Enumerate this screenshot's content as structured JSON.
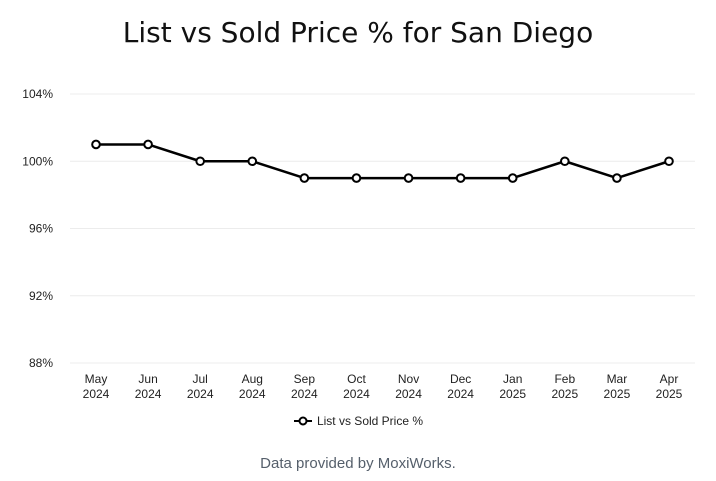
{
  "chart_data": {
    "type": "line",
    "title": "List vs Sold Price % for San Diego",
    "categories": [
      [
        "May",
        "2024"
      ],
      [
        "Jun",
        "2024"
      ],
      [
        "Jul",
        "2024"
      ],
      [
        "Aug",
        "2024"
      ],
      [
        "Sep",
        "2024"
      ],
      [
        "Oct",
        "2024"
      ],
      [
        "Nov",
        "2024"
      ],
      [
        "Dec",
        "2024"
      ],
      [
        "Jan",
        "2025"
      ],
      [
        "Feb",
        "2025"
      ],
      [
        "Mar",
        "2025"
      ],
      [
        "Apr",
        "2025"
      ]
    ],
    "series": [
      {
        "name": "List vs Sold Price %",
        "values": [
          101,
          101,
          100,
          100,
          99,
          99,
          99,
          99,
          99,
          100,
          99,
          100
        ],
        "color": "#000000"
      }
    ],
    "y_ticks": [
      "88%",
      "92%",
      "96%",
      "100%",
      "104%"
    ],
    "ylim": [
      88,
      104
    ],
    "grid": true,
    "legend_position": "bottom"
  },
  "footer": {
    "text": "Data provided by MoxiWorks."
  }
}
